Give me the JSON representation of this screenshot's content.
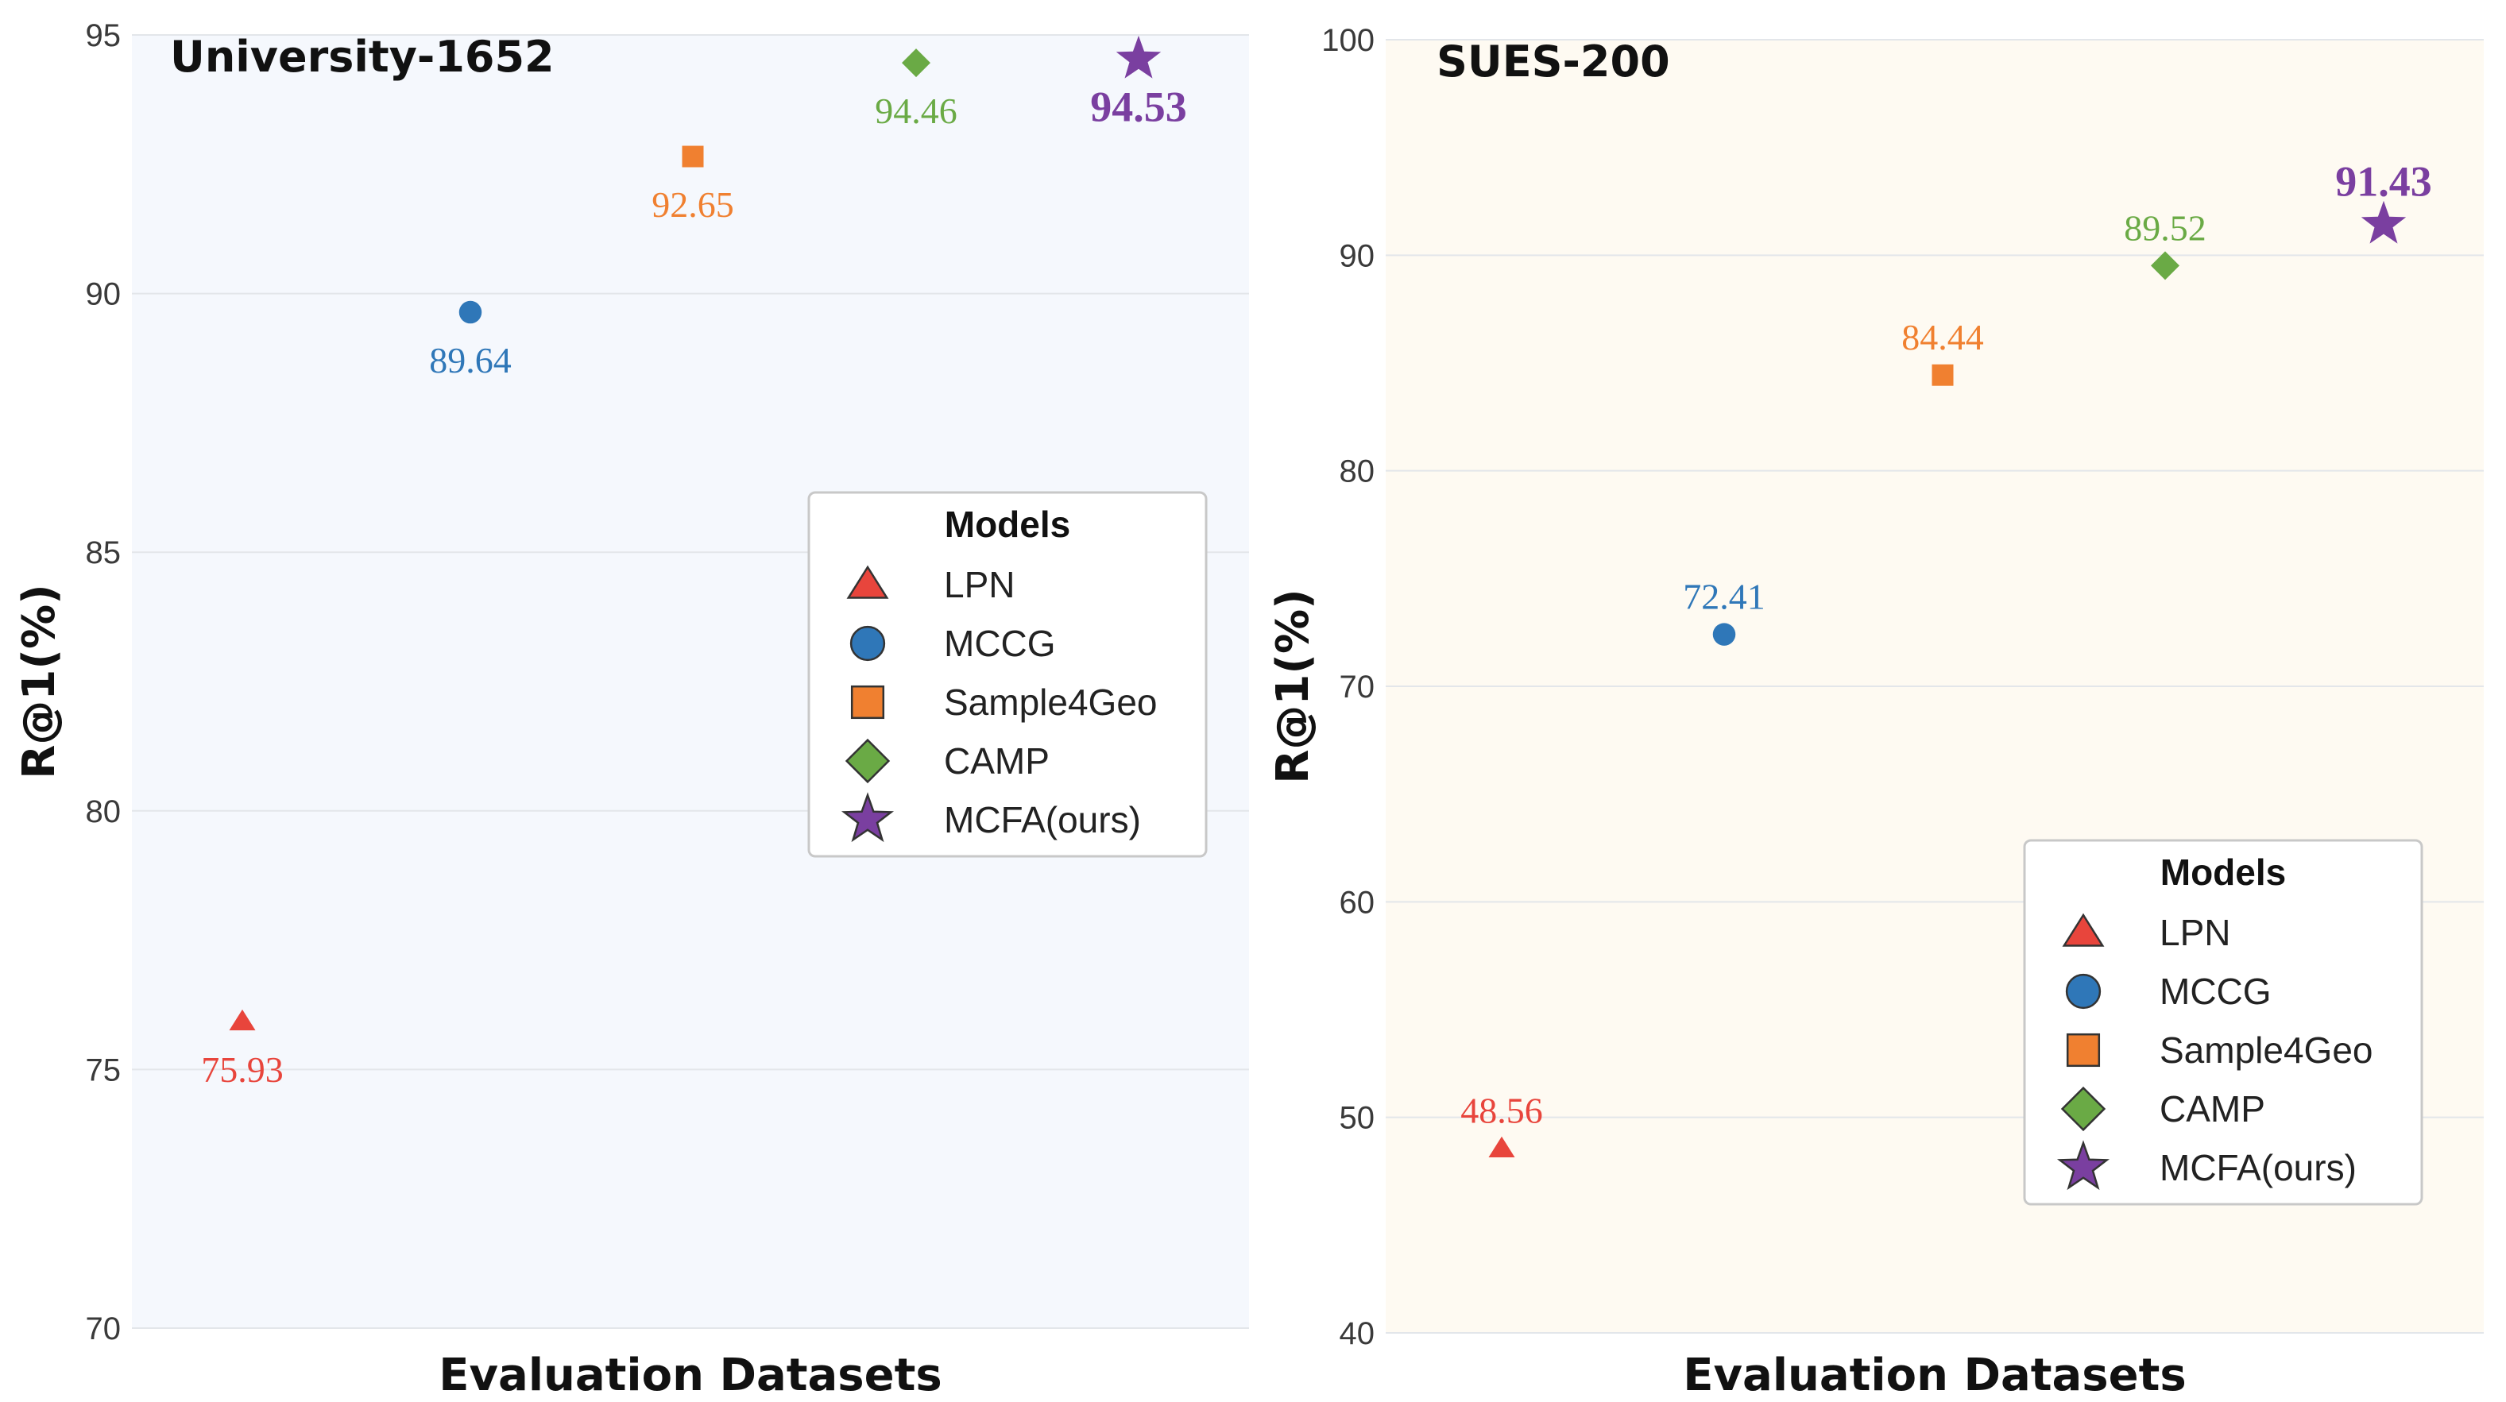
{
  "legend": {
    "title": "Models",
    "entries": [
      {
        "name": "LPN",
        "marker": "triangle",
        "color": "#e8453c"
      },
      {
        "name": "MCCG",
        "marker": "circle",
        "color": "#2f77b8"
      },
      {
        "name": "Sample4Geo",
        "marker": "square",
        "color": "#f08030"
      },
      {
        "name": "CAMP",
        "marker": "diamond",
        "color": "#6aaa45"
      },
      {
        "name": "MCFA(ours)",
        "marker": "star",
        "color": "#7a3fa0"
      }
    ]
  },
  "chart_data": [
    {
      "type": "scatter",
      "title": "University-1652",
      "xlabel": "Evaluation Datasets",
      "ylabel": "R@1(%)",
      "ylim": [
        70,
        95
      ],
      "yticks": [
        70,
        75,
        80,
        85,
        90,
        95
      ],
      "grid": true,
      "legend_position": "center-right",
      "background": "#f5f8fd",
      "series": [
        {
          "name": "LPN",
          "value": 75.93,
          "label": "75.93"
        },
        {
          "name": "MCCG",
          "value": 89.64,
          "label": "89.64"
        },
        {
          "name": "Sample4Geo",
          "value": 92.65,
          "label": "92.65"
        },
        {
          "name": "CAMP",
          "value": 94.46,
          "label": "94.46"
        },
        {
          "name": "MCFA(ours)",
          "value": 94.53,
          "label": "94.53"
        }
      ]
    },
    {
      "type": "scatter",
      "title": "SUES-200",
      "xlabel": "Evaluation Datasets",
      "ylabel": "R@1(%)",
      "ylim": [
        40,
        100
      ],
      "yticks": [
        40,
        50,
        60,
        70,
        80,
        90,
        100
      ],
      "grid": true,
      "legend_position": "lower-right",
      "background": "#fefaf2",
      "series": [
        {
          "name": "LPN",
          "value": 48.56,
          "label": "48.56"
        },
        {
          "name": "MCCG",
          "value": 72.41,
          "label": "72.41"
        },
        {
          "name": "Sample4Geo",
          "value": 84.44,
          "label": "84.44"
        },
        {
          "name": "CAMP",
          "value": 89.52,
          "label": "89.52"
        },
        {
          "name": "MCFA(ours)",
          "value": 91.43,
          "label": "91.43"
        }
      ]
    }
  ]
}
